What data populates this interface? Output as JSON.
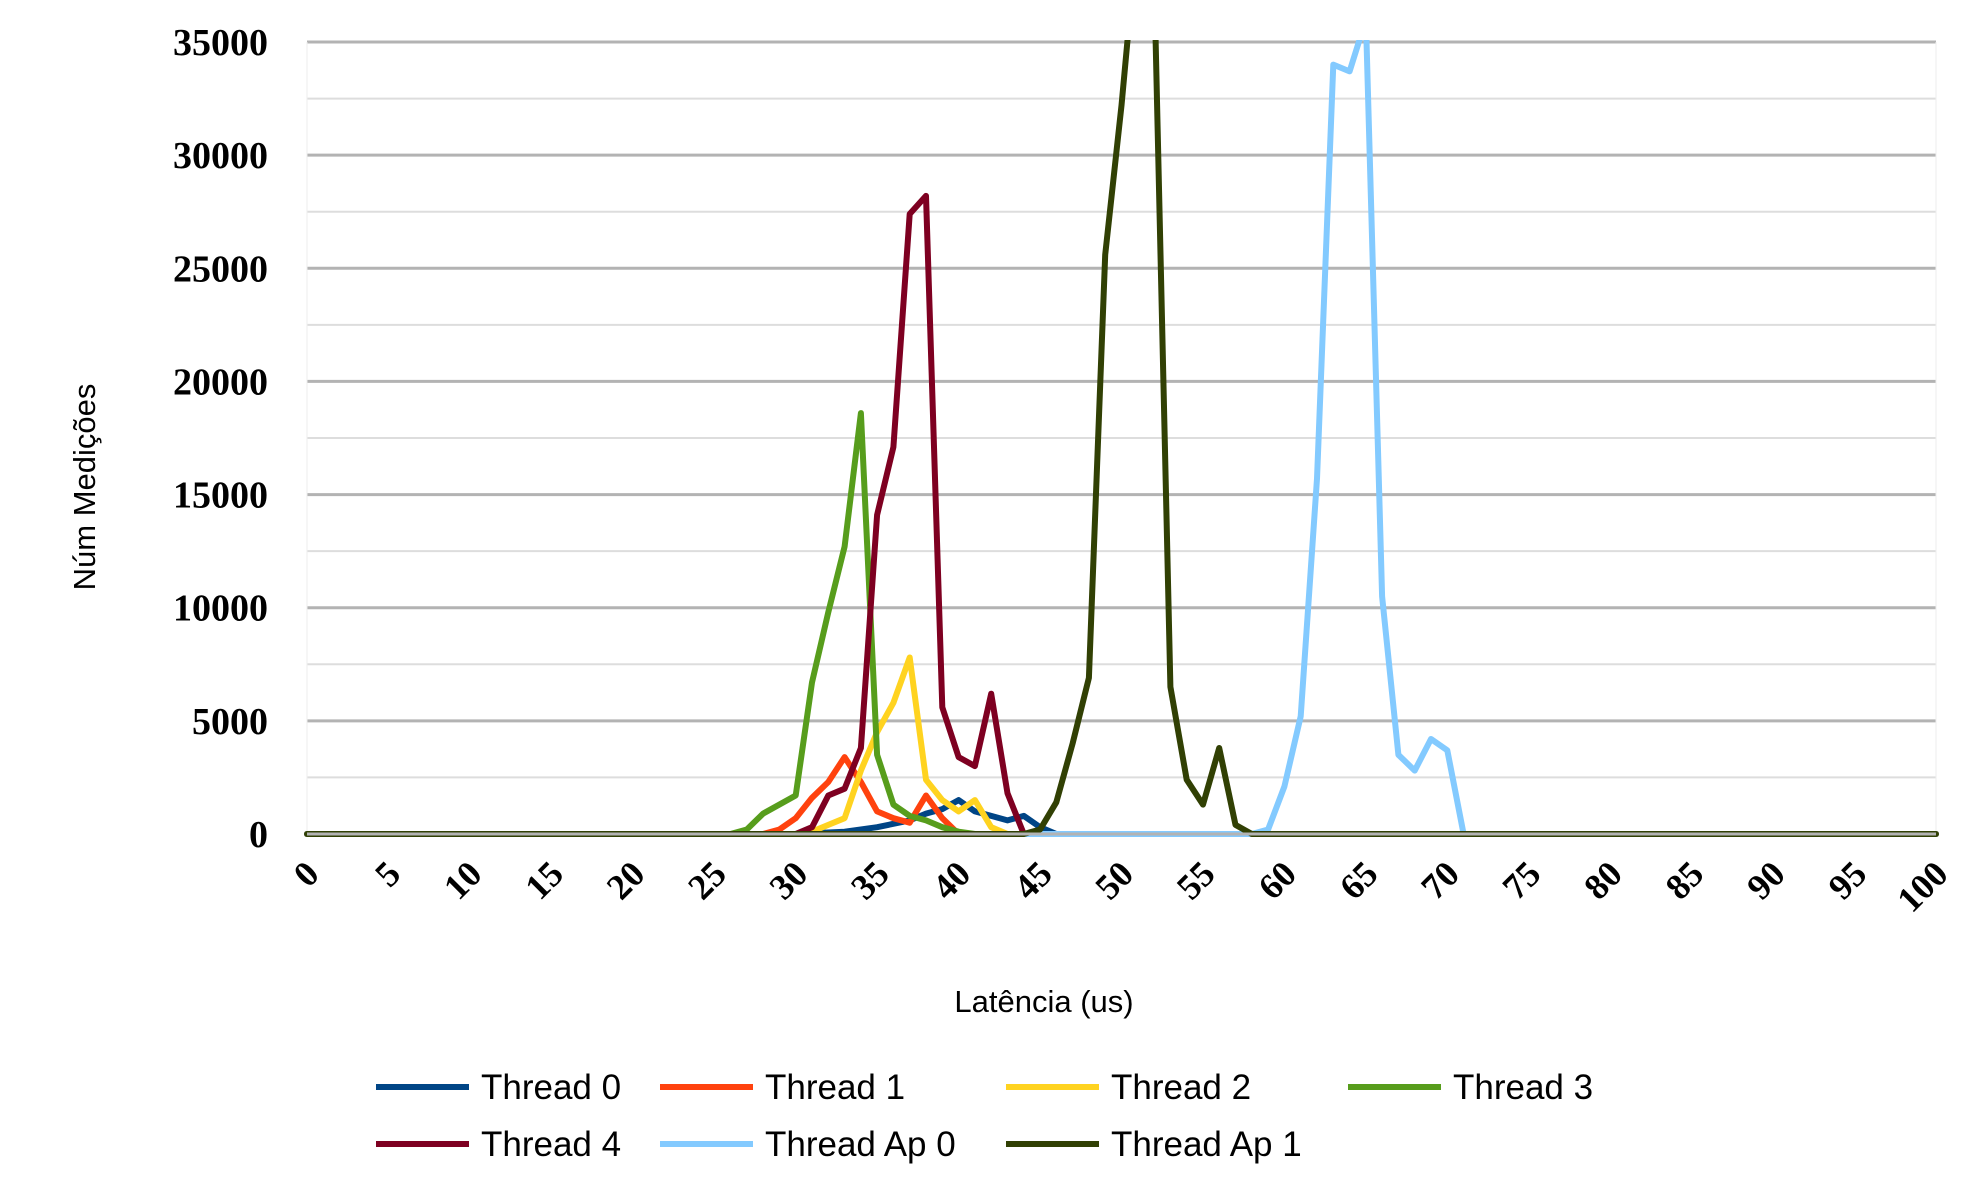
{
  "chart_data": {
    "type": "line",
    "title": "",
    "xlabel": "Latência (us)",
    "ylabel": "Núm Medições",
    "xlim": [
      0,
      100
    ],
    "ylim": [
      0,
      35000
    ],
    "x_ticks": [
      "0",
      "5",
      "10",
      "15",
      "20",
      "25",
      "30",
      "35",
      "40",
      "45",
      "50",
      "55",
      "60",
      "65",
      "70",
      "75",
      "80",
      "85",
      "90",
      "95",
      "100"
    ],
    "y_ticks": [
      "0",
      "5000",
      "10000",
      "15000",
      "20000",
      "25000",
      "30000",
      "35000"
    ],
    "grid": "horizontal",
    "legend_position": "bottom",
    "series": [
      {
        "name": "Thread 0",
        "color": "#004586",
        "points": [
          [
            0,
            0
          ],
          [
            25,
            0
          ],
          [
            30,
            0
          ],
          [
            33,
            100
          ],
          [
            35,
            300
          ],
          [
            37,
            600
          ],
          [
            38,
            900
          ],
          [
            39,
            1100
          ],
          [
            40,
            1500
          ],
          [
            41,
            1000
          ],
          [
            42,
            800
          ],
          [
            43,
            600
          ],
          [
            44,
            800
          ],
          [
            45,
            300
          ],
          [
            46,
            0
          ],
          [
            100,
            0
          ]
        ]
      },
      {
        "name": "Thread 1",
        "color": "#ff420e",
        "points": [
          [
            0,
            0
          ],
          [
            28,
            0
          ],
          [
            29,
            200
          ],
          [
            30,
            700
          ],
          [
            31,
            1600
          ],
          [
            32,
            2300
          ],
          [
            33,
            3400
          ],
          [
            34,
            2300
          ],
          [
            35,
            1000
          ],
          [
            36,
            700
          ],
          [
            37,
            500
          ],
          [
            38,
            1700
          ],
          [
            39,
            700
          ],
          [
            40,
            0
          ],
          [
            100,
            0
          ]
        ]
      },
      {
        "name": "Thread 2",
        "color": "#ffd320",
        "points": [
          [
            0,
            0
          ],
          [
            30,
            0
          ],
          [
            31,
            100
          ],
          [
            32,
            400
          ],
          [
            33,
            700
          ],
          [
            34,
            2800
          ],
          [
            35,
            4500
          ],
          [
            36,
            5800
          ],
          [
            37,
            7800
          ],
          [
            38,
            2400
          ],
          [
            39,
            1500
          ],
          [
            40,
            1000
          ],
          [
            41,
            1500
          ],
          [
            42,
            300
          ],
          [
            43,
            0
          ],
          [
            100,
            0
          ]
        ]
      },
      {
        "name": "Thread 3",
        "color": "#579d1c",
        "points": [
          [
            0,
            0
          ],
          [
            26,
            0
          ],
          [
            27,
            200
          ],
          [
            28,
            900
          ],
          [
            30,
            1700
          ],
          [
            31,
            6700
          ],
          [
            32,
            9800
          ],
          [
            33,
            12700
          ],
          [
            34,
            18600
          ],
          [
            35,
            3500
          ],
          [
            36,
            1300
          ],
          [
            37,
            800
          ],
          [
            38,
            600
          ],
          [
            39,
            300
          ],
          [
            40,
            100
          ],
          [
            41,
            0
          ],
          [
            100,
            0
          ]
        ]
      },
      {
        "name": "Thread 4",
        "color": "#7e0021",
        "points": [
          [
            0,
            0
          ],
          [
            30,
            0
          ],
          [
            31,
            300
          ],
          [
            32,
            1700
          ],
          [
            33,
            2000
          ],
          [
            34,
            3800
          ],
          [
            35,
            14100
          ],
          [
            36,
            17100
          ],
          [
            37,
            27400
          ],
          [
            38,
            28200
          ],
          [
            39,
            5600
          ],
          [
            40,
            3400
          ],
          [
            41,
            3000
          ],
          [
            42,
            6200
          ],
          [
            43,
            1800
          ],
          [
            44,
            0
          ],
          [
            100,
            0
          ]
        ]
      },
      {
        "name": "Thread Ap 0",
        "color": "#83caff",
        "points": [
          [
            0,
            0
          ],
          [
            45,
            0
          ],
          [
            58,
            0
          ],
          [
            59,
            200
          ],
          [
            60,
            2100
          ],
          [
            61,
            5200
          ],
          [
            62,
            15700
          ],
          [
            63,
            34000
          ],
          [
            64,
            33700
          ],
          [
            65,
            36000
          ],
          [
            66,
            10500
          ],
          [
            67,
            3500
          ],
          [
            68,
            2800
          ],
          [
            69,
            4200
          ],
          [
            70,
            3700
          ],
          [
            71,
            0
          ],
          [
            100,
            0
          ]
        ]
      },
      {
        "name": "Thread Ap 1",
        "color": "#314004",
        "points": [
          [
            0,
            0
          ],
          [
            44,
            0
          ],
          [
            45,
            200
          ],
          [
            46,
            1400
          ],
          [
            47,
            4000
          ],
          [
            48,
            6900
          ],
          [
            49,
            25600
          ],
          [
            50,
            32200
          ],
          [
            51,
            40000
          ],
          [
            52,
            38000
          ],
          [
            53,
            6500
          ],
          [
            54,
            2400
          ],
          [
            55,
            1300
          ],
          [
            56,
            3800
          ],
          [
            57,
            400
          ],
          [
            58,
            0
          ],
          [
            100,
            0
          ]
        ]
      }
    ]
  }
}
